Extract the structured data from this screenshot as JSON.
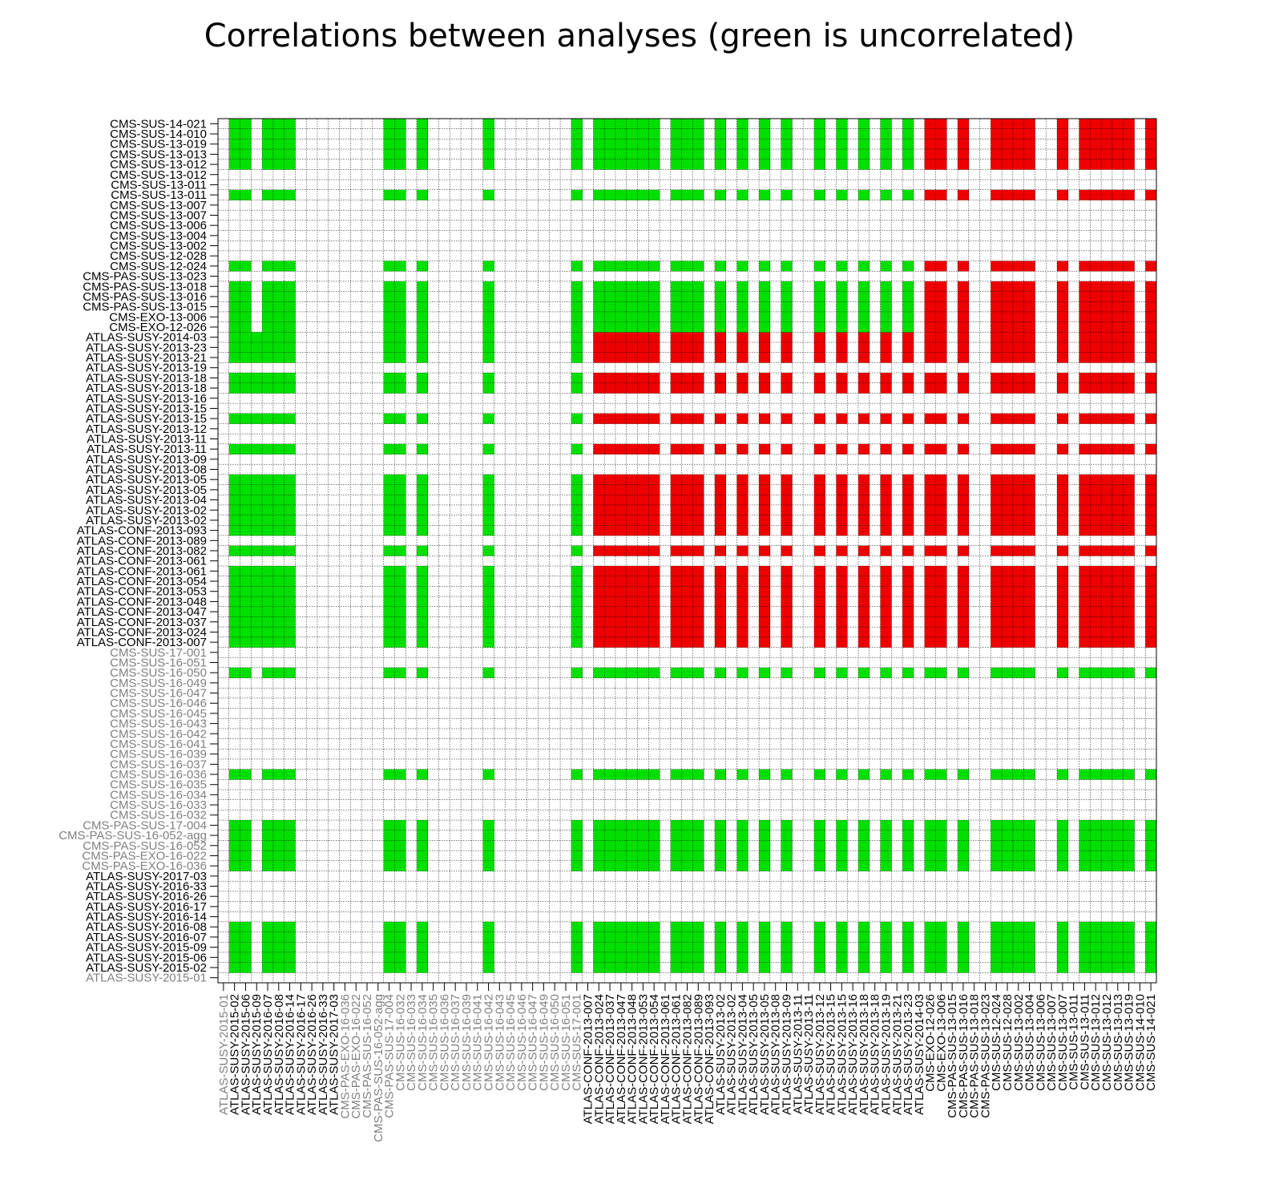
{
  "chart_data": {
    "type": "heatmap",
    "title": "Correlations between analyses (green is uncorrelated)",
    "labels": [
      "ATLAS-SUSY-2015-01",
      "ATLAS-SUSY-2015-02",
      "ATLAS-SUSY-2015-06",
      "ATLAS-SUSY-2015-09",
      "ATLAS-SUSY-2016-07",
      "ATLAS-SUSY-2016-08",
      "ATLAS-SUSY-2016-14",
      "ATLAS-SUSY-2016-17",
      "ATLAS-SUSY-2016-26",
      "ATLAS-SUSY-2016-33",
      "ATLAS-SUSY-2017-03",
      "CMS-PAS-EXO-16-036",
      "CMS-PAS-EXO-16-022",
      "CMS-PAS-SUS-16-052",
      "CMS-PAS-SUS-16-052-agg",
      "CMS-PAS-SUS-17-004",
      "CMS-SUS-16-032",
      "CMS-SUS-16-033",
      "CMS-SUS-16-034",
      "CMS-SUS-16-035",
      "CMS-SUS-16-036",
      "CMS-SUS-16-037",
      "CMS-SUS-16-039",
      "CMS-SUS-16-041",
      "CMS-SUS-16-042",
      "CMS-SUS-16-043",
      "CMS-SUS-16-045",
      "CMS-SUS-16-046",
      "CMS-SUS-16-047",
      "CMS-SUS-16-049",
      "CMS-SUS-16-050",
      "CMS-SUS-16-051",
      "CMS-SUS-17-001",
      "ATLAS-CONF-2013-007",
      "ATLAS-CONF-2013-024",
      "ATLAS-CONF-2013-037",
      "ATLAS-CONF-2013-047",
      "ATLAS-CONF-2013-048",
      "ATLAS-CONF-2013-053",
      "ATLAS-CONF-2013-054",
      "ATLAS-CONF-2013-061",
      "ATLAS-CONF-2013-061",
      "ATLAS-CONF-2013-082",
      "ATLAS-CONF-2013-089",
      "ATLAS-CONF-2013-093",
      "ATLAS-SUSY-2013-02",
      "ATLAS-SUSY-2013-02",
      "ATLAS-SUSY-2013-04",
      "ATLAS-SUSY-2013-05",
      "ATLAS-SUSY-2013-05",
      "ATLAS-SUSY-2013-08",
      "ATLAS-SUSY-2013-09",
      "ATLAS-SUSY-2013-11",
      "ATLAS-SUSY-2013-11",
      "ATLAS-SUSY-2013-12",
      "ATLAS-SUSY-2013-15",
      "ATLAS-SUSY-2013-15",
      "ATLAS-SUSY-2013-16",
      "ATLAS-SUSY-2013-18",
      "ATLAS-SUSY-2013-18",
      "ATLAS-SUSY-2013-19",
      "ATLAS-SUSY-2013-21",
      "ATLAS-SUSY-2013-23",
      "ATLAS-SUSY-2014-03",
      "CMS-EXO-12-026",
      "CMS-EXO-13-006",
      "CMS-PAS-SUS-13-015",
      "CMS-PAS-SUS-13-016",
      "CMS-PAS-SUS-13-018",
      "CMS-PAS-SUS-13-023",
      "CMS-SUS-12-024",
      "CMS-SUS-12-028",
      "CMS-SUS-13-002",
      "CMS-SUS-13-004",
      "CMS-SUS-13-006",
      "CMS-SUS-13-007",
      "CMS-SUS-13-007",
      "CMS-SUS-13-011",
      "CMS-SUS-13-011",
      "CMS-SUS-13-012",
      "CMS-SUS-13-012",
      "CMS-SUS-13-013",
      "CMS-SUS-13-019",
      "CMS-SUS-14-010",
      "CMS-SUS-14-021"
    ],
    "label_colors": {
      "default": "#000000",
      "grey": "#808080",
      "grey_from": 0,
      "grey_to": 32,
      "grey_except": [
        1,
        2,
        3,
        4,
        5,
        6,
        7,
        8,
        9,
        10
      ]
    },
    "value_encoding": "0 = not evaluated (white), 1 = uncorrelated (green), 2 = correlated (red)",
    "row_patterns": {
      "G_BASE": "0110111000000001101000001000000010111111011101010101001010101010110100111100101111101",
      "R_A": "0111111000000001101000001000000010222222022202020202002020202020220200222200202222202",
      "R_B": "0112211000000001101000001000000010222222022202020202002020202020220200222200202222202",
      "C_ATL": "0110111000000001101000001000000010111111011101010101001010101010220200222200202222202",
      "C_CMS": "0000000000000000000000000000000000000000000000000000000000000000000000000000000000000"
    },
    "grid": true,
    "colors": {
      "uncorrelated": "#00e000",
      "correlated": "#ee0000",
      "empty": "#ffffff",
      "gridline": "#000000"
    }
  }
}
